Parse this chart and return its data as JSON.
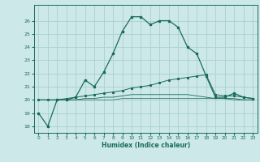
{
  "xlabel": "Humidex (Indice chaleur)",
  "bg_color": "#cce8e8",
  "grid_color": "#aacfcf",
  "line_color": "#1a6b5a",
  "xlim": [
    -0.5,
    23.5
  ],
  "ylim": [
    17.5,
    27.2
  ],
  "yticks": [
    18,
    19,
    20,
    21,
    22,
    23,
    24,
    25,
    26
  ],
  "xticks": [
    0,
    1,
    2,
    3,
    4,
    5,
    6,
    7,
    8,
    9,
    10,
    11,
    12,
    13,
    14,
    15,
    16,
    17,
    18,
    19,
    20,
    21,
    22,
    23
  ],
  "s1_x": [
    0,
    1,
    2,
    3,
    4,
    5,
    6,
    7,
    8,
    9,
    10,
    11,
    12,
    13,
    14,
    15,
    16,
    17,
    18,
    19,
    20,
    21,
    22,
    23
  ],
  "s1_y": [
    19.0,
    18.0,
    20.0,
    20.0,
    20.2,
    21.5,
    21.0,
    22.1,
    23.5,
    25.2,
    26.3,
    26.3,
    25.7,
    26.0,
    26.0,
    25.5,
    24.0,
    23.5,
    21.8,
    20.2,
    20.2,
    20.5,
    20.2,
    20.1
  ],
  "s2_x": [
    0,
    1,
    2,
    3,
    4,
    5,
    6,
    7,
    8,
    9,
    10,
    11,
    12,
    13,
    14,
    15,
    16,
    17,
    18,
    19,
    20,
    21,
    22,
    23
  ],
  "s2_y": [
    20.0,
    20.0,
    20.0,
    20.1,
    20.2,
    20.3,
    20.4,
    20.5,
    20.6,
    20.7,
    20.9,
    21.0,
    21.1,
    21.3,
    21.5,
    21.6,
    21.7,
    21.8,
    21.9,
    20.4,
    20.3,
    20.3,
    20.2,
    20.1
  ],
  "s3_x": [
    0,
    1,
    2,
    3,
    4,
    5,
    6,
    7,
    8,
    9,
    10,
    11,
    12,
    13,
    14,
    15,
    16,
    17,
    18,
    19,
    20,
    21,
    22,
    23
  ],
  "s3_y": [
    20.0,
    20.0,
    20.0,
    20.0,
    20.0,
    20.1,
    20.1,
    20.2,
    20.2,
    20.3,
    20.4,
    20.4,
    20.4,
    20.4,
    20.4,
    20.4,
    20.4,
    20.3,
    20.2,
    20.1,
    20.1,
    20.1,
    20.0,
    20.0
  ],
  "s4_x": [
    0,
    1,
    2,
    3,
    4,
    5,
    6,
    7,
    8,
    9,
    10,
    11,
    12,
    13,
    14,
    15,
    16,
    17,
    18,
    19,
    20,
    21,
    22,
    23
  ],
  "s4_y": [
    20.0,
    20.0,
    20.0,
    20.0,
    20.0,
    20.0,
    20.0,
    20.0,
    20.0,
    20.1,
    20.1,
    20.1,
    20.1,
    20.1,
    20.1,
    20.1,
    20.1,
    20.1,
    20.1,
    20.1,
    20.1,
    20.0,
    20.0,
    20.0
  ]
}
